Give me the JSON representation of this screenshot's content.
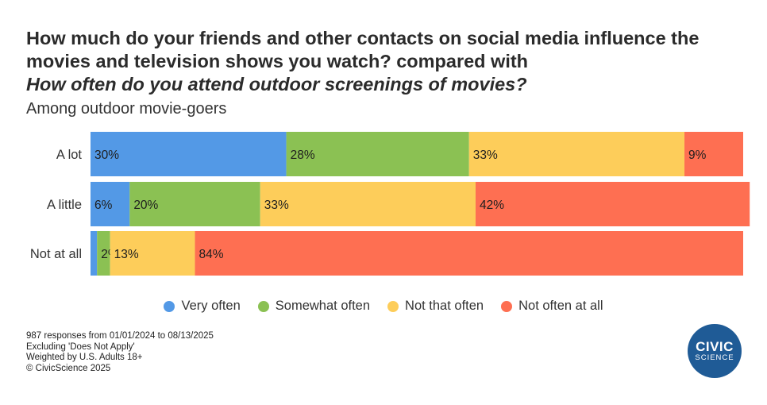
{
  "title": {
    "line1": "How much do your friends and other contacts on social media influence the movies and television shows you watch?  compared with",
    "line2": "How often do you attend outdoor screenings of movies?"
  },
  "subtitle": "Among outdoor movie-goers",
  "chart_data": {
    "type": "bar",
    "orientation": "horizontal",
    "stacked": true,
    "normalized": true,
    "categories": [
      "A lot",
      "A little",
      "Not at all"
    ],
    "series": [
      {
        "name": "Very often",
        "color": "#5399e6",
        "values": [
          30,
          6,
          1
        ],
        "labels": [
          "30%",
          "6%",
          ""
        ]
      },
      {
        "name": "Somewhat often",
        "color": "#8bc153",
        "values": [
          28,
          20,
          2
        ],
        "labels": [
          "28%",
          "20%",
          "2%"
        ]
      },
      {
        "name": "Not that often",
        "color": "#fdcd5a",
        "values": [
          33,
          33,
          13
        ],
        "labels": [
          "33%",
          "33%",
          "13%"
        ]
      },
      {
        "name": "Not often at all",
        "color": "#fe6f52",
        "values": [
          9,
          42,
          84
        ],
        "labels": [
          "9%",
          "42%",
          "84%"
        ]
      }
    ],
    "xlim": [
      0,
      100
    ],
    "grid": false,
    "legend": "bottom"
  },
  "footnotes": [
    "987 responses from 01/01/2024 to 08/13/2025",
    "Excluding 'Does Not Apply'",
    "Weighted by U.S. Adults 18+",
    "© CivicScience 2025"
  ],
  "logo": {
    "line1": "CIVIC",
    "line2": "SCIENCE"
  }
}
